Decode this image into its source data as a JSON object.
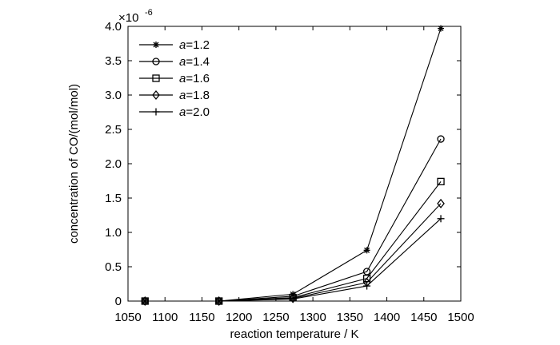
{
  "chart_data": {
    "type": "line",
    "xlabel": "reaction temperature / K",
    "ylabel": "concentration of CO/(mol/mol)",
    "y_multiplier": "×10",
    "y_exponent": "-6",
    "xlim": [
      1050,
      1500
    ],
    "ylim": [
      0,
      4.0
    ],
    "x_ticks": [
      "1050",
      "1100",
      "1150",
      "1200",
      "1250",
      "1300",
      "1350",
      "1400",
      "1450",
      "1500"
    ],
    "y_ticks": [
      "0",
      "0.5",
      "1.0",
      "1.5",
      "2.0",
      "2.5",
      "3.0",
      "3.5",
      "4.0"
    ],
    "grid": false,
    "legend_position": "top-left",
    "x": [
      1073,
      1173,
      1273,
      1373,
      1473
    ],
    "series": [
      {
        "name_prefix": "a",
        "name_value": "=1.2",
        "marker": "asterisk",
        "values": [
          0.0,
          0.0,
          0.1,
          0.74,
          3.97
        ]
      },
      {
        "name_prefix": "a",
        "name_value": "=1.4",
        "marker": "circle",
        "values": [
          0.0,
          0.0,
          0.07,
          0.43,
          2.36
        ]
      },
      {
        "name_prefix": "a",
        "name_value": "=1.6",
        "marker": "square",
        "values": [
          0.0,
          0.0,
          0.05,
          0.33,
          1.74
        ]
      },
      {
        "name_prefix": "a",
        "name_value": "=1.8",
        "marker": "diamond",
        "values": [
          0.0,
          0.0,
          0.04,
          0.27,
          1.42
        ]
      },
      {
        "name_prefix": "a",
        "name_value": "=2.0",
        "marker": "plus",
        "values": [
          0.0,
          0.0,
          0.03,
          0.22,
          1.2
        ]
      }
    ]
  }
}
